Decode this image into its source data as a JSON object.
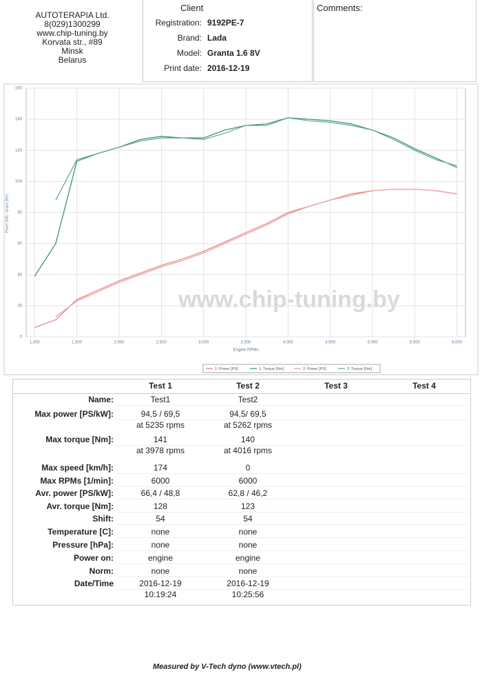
{
  "header": {
    "company": [
      "AUTOTERAPIA Ltd.",
      "8(029)1300299",
      "www.chip-tuning.by",
      "Korvata str., #89",
      "Minsk",
      "Belarus"
    ],
    "client_title": "Client",
    "fields": [
      {
        "label": "Registration:",
        "value": "9192PE-7"
      },
      {
        "label": "Brand:",
        "value": "Lada"
      },
      {
        "label": "Model:",
        "value": "Granta 1.6 8V"
      },
      {
        "label": "Print date:",
        "value": "2016-12-19"
      }
    ],
    "comments_title": "Comments:"
  },
  "chart_data": {
    "type": "line",
    "x_label": "Engine RPMs",
    "y_label": "Power [kW] - torque [Nm]",
    "watermark": "www.chip-tuning.by",
    "x": [
      1000,
      1250,
      1500,
      1750,
      2000,
      2250,
      2500,
      2750,
      3000,
      3250,
      3500,
      3750,
      4000,
      4250,
      4500,
      4750,
      5000,
      5250,
      5500,
      5750,
      6000
    ],
    "xlim": [
      900,
      6100
    ],
    "ylim": [
      0,
      160
    ],
    "xticks": [
      {
        "value": 1000,
        "label": "1.000"
      },
      {
        "value": 1500,
        "label": "1.500"
      },
      {
        "value": 2000,
        "label": "2.000"
      },
      {
        "value": 2500,
        "label": "2.500"
      },
      {
        "value": 3000,
        "label": "3.000"
      },
      {
        "value": 3500,
        "label": "3.500"
      },
      {
        "value": 4000,
        "label": "4.000"
      },
      {
        "value": 4500,
        "label": "4.500"
      },
      {
        "value": 5000,
        "label": "5.000"
      },
      {
        "value": 5500,
        "label": "5.500"
      },
      {
        "value": 6000,
        "label": "6.000"
      }
    ],
    "yticks": [
      0,
      20,
      40,
      60,
      80,
      100,
      120,
      140,
      160
    ],
    "grid": true,
    "series": [
      {
        "name": "1: Power [PS]",
        "color": "#e5868a",
        "values": [
          6,
          11,
          24,
          30,
          36,
          41,
          46,
          50,
          55,
          61,
          67,
          73,
          80,
          84,
          88,
          92,
          94,
          95,
          95,
          94,
          92
        ]
      },
      {
        "name": "1: Torque [Nm]",
        "color": "#3f8f86",
        "values": [
          39,
          60,
          113,
          118,
          122,
          127,
          129,
          128,
          128,
          133,
          136,
          137,
          141,
          140,
          139,
          137,
          133,
          128,
          121,
          115,
          109
        ]
      },
      {
        "name": "2: Power [PS]",
        "color": "#f0a2a2",
        "values": [
          null,
          13,
          23,
          29,
          35,
          40,
          45,
          49,
          54,
          60,
          66,
          72,
          79,
          84,
          88,
          91,
          94,
          95,
          95,
          94,
          92
        ]
      },
      {
        "name": "2: Torque [Nm]",
        "color": "#6aa89a",
        "values": [
          null,
          88,
          114,
          118,
          122,
          126,
          128,
          128,
          127,
          131,
          136,
          136,
          141,
          139,
          138,
          136,
          133,
          127,
          120,
          114,
          110
        ]
      }
    ]
  },
  "table": {
    "headers": [
      "Test 1",
      "Test 2",
      "Test 3",
      "Test 4"
    ],
    "rows": [
      {
        "label": "Name:",
        "values": [
          "Test1",
          "Test2"
        ]
      },
      {
        "label": "Max power [PS/kW]:",
        "values": [
          "94,5 / 69,5\nat 5235 rpms",
          "94,5/ 69,5\nat 5262 rpms"
        ]
      },
      {
        "label": "Max torque [Nm]:",
        "values": [
          "141\nat 3978 rpms",
          "140\nat 4016 rpms"
        ]
      },
      {
        "label": "Max speed [km/h]:",
        "values": [
          "174",
          "0"
        ]
      },
      {
        "label": "Max RPMs [1/min]:",
        "values": [
          "6000",
          "6000"
        ]
      },
      {
        "label": "Avr. power [PS/kW]:",
        "values": [
          "66,4 / 48,8",
          "62,8 / 46,2"
        ]
      },
      {
        "label": "Avr. torque [Nm]:",
        "values": [
          "128",
          "123"
        ]
      },
      {
        "label": "Shift:",
        "values": [
          "54",
          "54"
        ]
      },
      {
        "label": "Temperature [C]:",
        "values": [
          "none",
          "none"
        ]
      },
      {
        "label": "Pressure [hPa]:",
        "values": [
          "none",
          "none"
        ]
      },
      {
        "label": "Power on:",
        "values": [
          "engine",
          "engine"
        ]
      },
      {
        "label": "Norm:",
        "values": [
          "none",
          "none"
        ]
      },
      {
        "label": "Date/Time",
        "values": [
          "2016-12-19\n10:19:24",
          "2016-12-19\n10:25:56"
        ]
      }
    ]
  },
  "footer": "Measured by V-Tech dyno (www.vtech.pl)"
}
